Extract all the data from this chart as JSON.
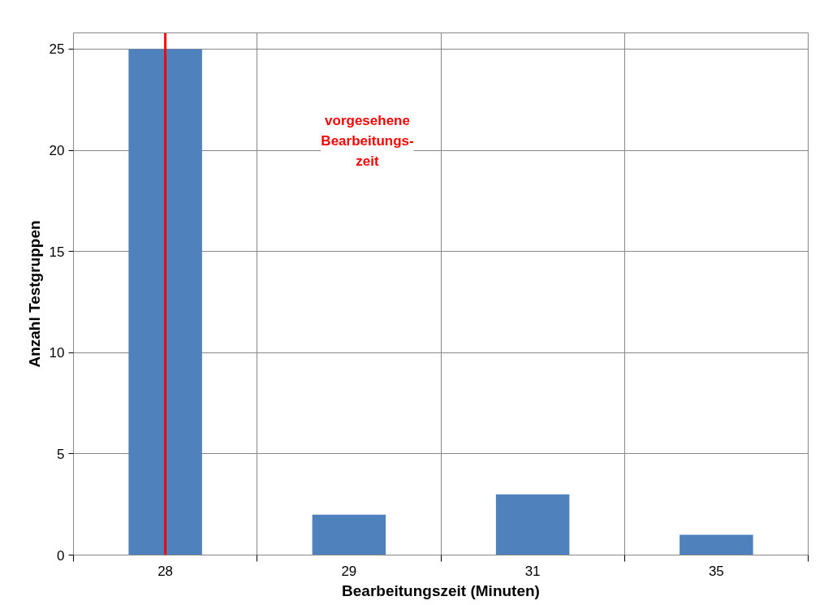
{
  "chart_data": {
    "type": "bar",
    "xlabel": "Bearbeitungszeit (Minuten)",
    "ylabel": "Anzahl Testgruppen",
    "categories": [
      "28",
      "29",
      "31",
      "35"
    ],
    "values": [
      25,
      2,
      3,
      1
    ],
    "color": "#4f81bd",
    "ylim": [
      0,
      25.8
    ],
    "yticks": [
      0,
      5,
      10,
      15,
      20,
      25
    ],
    "grid": true,
    "ref_lines": [
      {
        "axis": "x",
        "value": "28",
        "label": "vorgesehene\nBearbeitungs-\nzeit",
        "color": "#ff0000"
      }
    ]
  }
}
